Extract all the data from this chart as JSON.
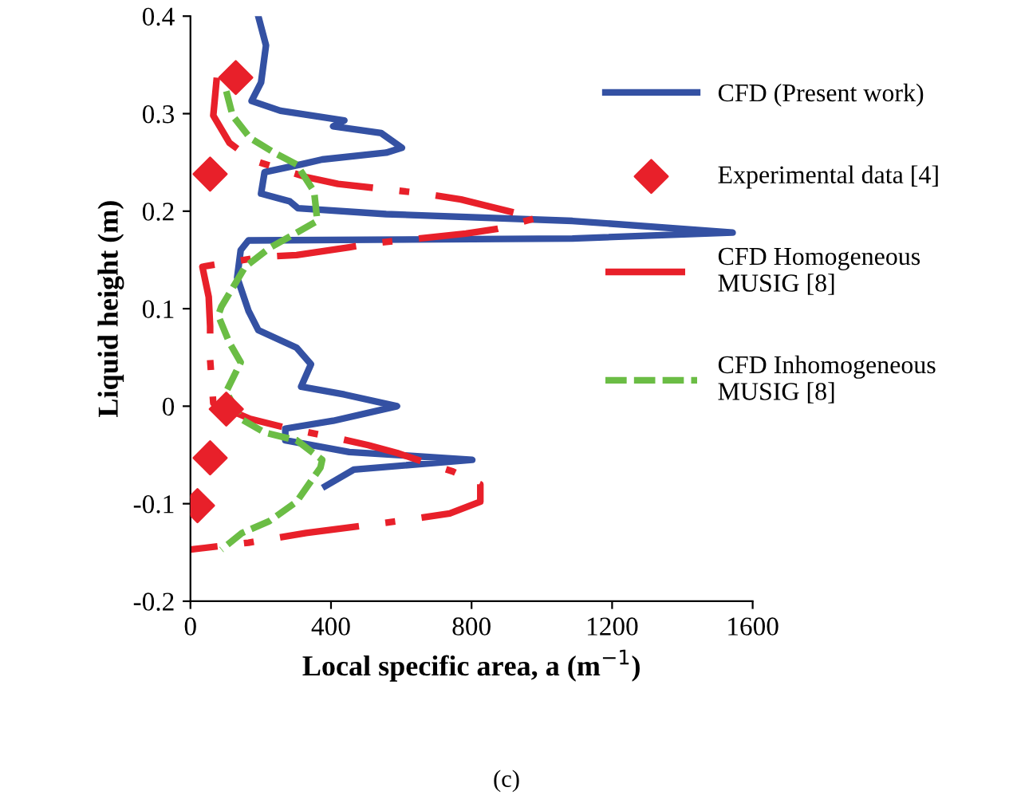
{
  "chart_data": {
    "type": "line",
    "xlabel": "Local specific area, a (m$^{−1}$)",
    "ylabel": "Liquid height (m)",
    "xlim": [
      0,
      1600
    ],
    "ylim": [
      -0.2,
      0.4
    ],
    "xticks": [
      0,
      400,
      800,
      1200,
      1600
    ],
    "yticks": [
      {
        "value": -0.2,
        "label": "-0.2"
      },
      {
        "value": -0.1,
        "label": "-0.1"
      },
      0,
      0.1,
      0.2,
      0.3,
      0.4
    ],
    "grid": false,
    "legend": "right",
    "annotations": [
      "(c)"
    ],
    "series": [
      {
        "name": "CFD (Present work)",
        "color": "#3451a3",
        "type": "line",
        "line_style": "solid",
        "x": [
          193,
          215,
          201,
          174,
          256,
          438,
          406,
          543,
          602,
          557,
          375,
          315,
          211,
          201,
          283,
          306,
          557,
          1087,
          1543,
          1087,
          165,
          143,
          133,
          165,
          193,
          302,
          343,
          315,
          438,
          588,
          406,
          270,
          270,
          452,
          802,
          465,
          384
        ],
        "values": [
          0.4,
          0.37,
          0.332,
          0.313,
          0.303,
          0.293,
          0.287,
          0.28,
          0.265,
          0.26,
          0.253,
          0.248,
          0.24,
          0.218,
          0.21,
          0.203,
          0.197,
          0.19,
          0.178,
          0.172,
          0.17,
          0.16,
          0.132,
          0.098,
          0.078,
          0.06,
          0.043,
          0.02,
          0.012,
          0.0,
          -0.015,
          -0.023,
          -0.035,
          -0.047,
          -0.055,
          -0.065,
          -0.082
        ]
      },
      {
        "name": "Experimental data [4]",
        "color": "#e8202a",
        "type": "scatter",
        "marker": "diamond",
        "x": [
          129,
          56,
          102,
          56,
          20
        ],
        "values": [
          0.337,
          0.238,
          -0.003,
          -0.053,
          -0.102
        ]
      },
      {
        "name": "CFD Homogeneous\nMUSIG [8]",
        "color": "#e8202a",
        "line_style": "dashdot",
        "x": [
          75,
          65,
          111,
          179,
          329,
          420,
          666,
          770,
          984,
          875,
          784,
          543,
          452,
          302,
          202,
          34,
          52,
          56,
          56,
          65,
          170,
          270,
          420,
          506,
          588,
          747,
          825,
          825,
          738,
          588,
          329,
          165,
          0
        ],
        "values": [
          0.337,
          0.298,
          0.27,
          0.252,
          0.235,
          0.228,
          0.218,
          0.212,
          0.193,
          0.182,
          0.177,
          0.168,
          0.163,
          0.155,
          0.153,
          0.143,
          0.112,
          0.082,
          0.048,
          0.003,
          -0.013,
          -0.022,
          -0.033,
          -0.04,
          -0.048,
          -0.067,
          -0.08,
          -0.098,
          -0.11,
          -0.118,
          -0.13,
          -0.14,
          -0.147
        ]
      },
      {
        "name": "CFD Inhomogeneous\nMUSIG [8]",
        "color": "#6bbd45",
        "line_style": "dashed",
        "x": [
          102,
          120,
          170,
          238,
          302,
          352,
          361,
          224,
          156,
          88,
          79,
          111,
          143,
          102,
          143,
          211,
          302,
          375,
          370,
          302,
          224,
          147,
          88
        ],
        "values": [
          0.323,
          0.298,
          0.275,
          0.26,
          0.248,
          0.22,
          0.19,
          0.162,
          0.143,
          0.102,
          0.093,
          0.065,
          0.045,
          0.015,
          -0.013,
          -0.027,
          -0.035,
          -0.055,
          -0.063,
          -0.098,
          -0.118,
          -0.13,
          -0.147
        ]
      }
    ]
  }
}
